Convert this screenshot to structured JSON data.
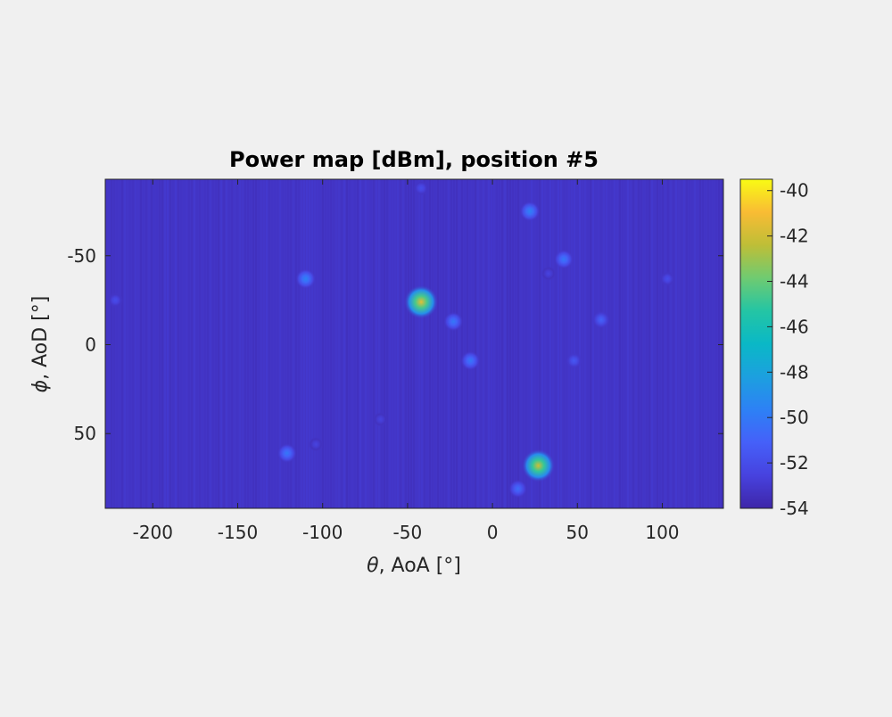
{
  "chart_data": {
    "type": "heatmap",
    "title": "Power map [dBm], position #5",
    "xlabel_symbol": "θ",
    "xlabel": ", AoA [°]",
    "ylabel_symbol": "ϕ",
    "ylabel": ", AoD [°]",
    "xlim": [
      -228,
      136
    ],
    "ylim": [
      -93,
      92
    ],
    "y_reversed": true,
    "x_ticks": [
      -200,
      -150,
      -100,
      -50,
      0,
      50,
      100
    ],
    "y_ticks": [
      -50,
      0,
      50
    ],
    "colorbar": {
      "min": -54,
      "max": -39.5,
      "ticks": [
        -40,
        -42,
        -44,
        -46,
        -48,
        -50,
        -52,
        -54
      ],
      "colormap": "parula"
    },
    "background_level": -53.2,
    "peaks": [
      {
        "theta": -42,
        "phi": -24,
        "power": -41.5
      },
      {
        "theta": 27,
        "phi": 68,
        "power": -42.0
      },
      {
        "theta": -110,
        "phi": -37,
        "power": -49.5
      },
      {
        "theta": 22,
        "phi": -75,
        "power": -49.5
      },
      {
        "theta": 42,
        "phi": -48,
        "power": -50.0
      },
      {
        "theta": -23,
        "phi": -13,
        "power": -50.0
      },
      {
        "theta": -13,
        "phi": 9,
        "power": -50.0
      },
      {
        "theta": -121,
        "phi": 61,
        "power": -50.0
      },
      {
        "theta": 15,
        "phi": 81,
        "power": -50.5
      },
      {
        "theta": 64,
        "phi": -14,
        "power": -51.0
      },
      {
        "theta": 48,
        "phi": 9,
        "power": -51.5
      },
      {
        "theta": -222,
        "phi": -25,
        "power": -52.0
      },
      {
        "theta": 103,
        "phi": -37,
        "power": -52.0
      },
      {
        "theta": -42,
        "phi": -88,
        "power": -52.0
      },
      {
        "theta": 33,
        "phi": -40,
        "power": -52.5
      },
      {
        "theta": -104,
        "phi": 56,
        "power": -52.5
      },
      {
        "theta": -66,
        "phi": 42,
        "power": -52.5
      }
    ]
  }
}
